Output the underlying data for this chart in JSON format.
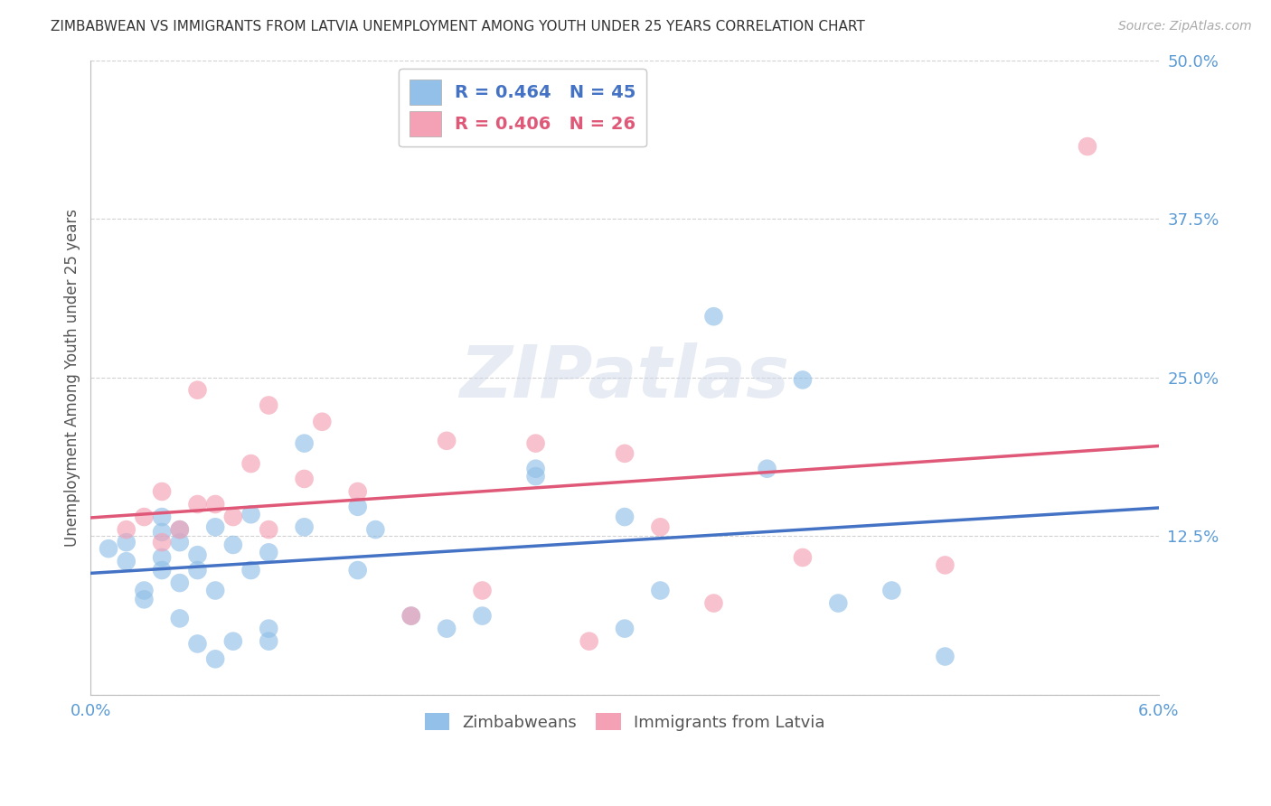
{
  "title": "ZIMBABWEAN VS IMMIGRANTS FROM LATVIA UNEMPLOYMENT AMONG YOUTH UNDER 25 YEARS CORRELATION CHART",
  "source": "Source: ZipAtlas.com",
  "ylabel": "Unemployment Among Youth under 25 years",
  "xlim": [
    0.0,
    0.06
  ],
  "ylim": [
    0.0,
    0.5
  ],
  "xticks": [
    0.0,
    0.01,
    0.02,
    0.03,
    0.04,
    0.05,
    0.06
  ],
  "xticklabels": [
    "0.0%",
    "",
    "",
    "",
    "",
    "",
    "6.0%"
  ],
  "ytick_vals": [
    0.0,
    0.125,
    0.25,
    0.375,
    0.5
  ],
  "yticklabels": [
    "",
    "12.5%",
    "25.0%",
    "37.5%",
    "50.0%"
  ],
  "blue_R": 0.464,
  "blue_N": 45,
  "pink_R": 0.406,
  "pink_N": 26,
  "legend_label_blue": "Zimbabweans",
  "legend_label_pink": "Immigrants from Latvia",
  "blue_color": "#92C0E8",
  "pink_color": "#F4A0B5",
  "blue_line_color": "#4472C4",
  "pink_line_color": "#E05878",
  "axis_color": "#5B9BD5",
  "watermark_text": "ZIP",
  "watermark_text2": "atlas",
  "blue_x": [
    0.001,
    0.002,
    0.002,
    0.003,
    0.003,
    0.004,
    0.004,
    0.004,
    0.004,
    0.005,
    0.005,
    0.005,
    0.005,
    0.006,
    0.006,
    0.006,
    0.007,
    0.007,
    0.007,
    0.008,
    0.008,
    0.009,
    0.009,
    0.01,
    0.01,
    0.01,
    0.012,
    0.012,
    0.015,
    0.015,
    0.016,
    0.018,
    0.02,
    0.022,
    0.025,
    0.025,
    0.03,
    0.03,
    0.032,
    0.035,
    0.038,
    0.04,
    0.042,
    0.045,
    0.048
  ],
  "blue_y": [
    0.115,
    0.105,
    0.12,
    0.075,
    0.082,
    0.098,
    0.108,
    0.128,
    0.14,
    0.06,
    0.088,
    0.12,
    0.13,
    0.04,
    0.098,
    0.11,
    0.028,
    0.082,
    0.132,
    0.042,
    0.118,
    0.098,
    0.142,
    0.042,
    0.052,
    0.112,
    0.132,
    0.198,
    0.098,
    0.148,
    0.13,
    0.062,
    0.052,
    0.062,
    0.172,
    0.178,
    0.14,
    0.052,
    0.082,
    0.298,
    0.178,
    0.248,
    0.072,
    0.082,
    0.03
  ],
  "pink_x": [
    0.002,
    0.003,
    0.004,
    0.004,
    0.005,
    0.006,
    0.006,
    0.007,
    0.008,
    0.009,
    0.01,
    0.01,
    0.012,
    0.013,
    0.015,
    0.018,
    0.02,
    0.022,
    0.025,
    0.028,
    0.03,
    0.032,
    0.035,
    0.04,
    0.048,
    0.056
  ],
  "pink_y": [
    0.13,
    0.14,
    0.12,
    0.16,
    0.13,
    0.15,
    0.24,
    0.15,
    0.14,
    0.182,
    0.13,
    0.228,
    0.17,
    0.215,
    0.16,
    0.062,
    0.2,
    0.082,
    0.198,
    0.042,
    0.19,
    0.132,
    0.072,
    0.108,
    0.102,
    0.432
  ]
}
